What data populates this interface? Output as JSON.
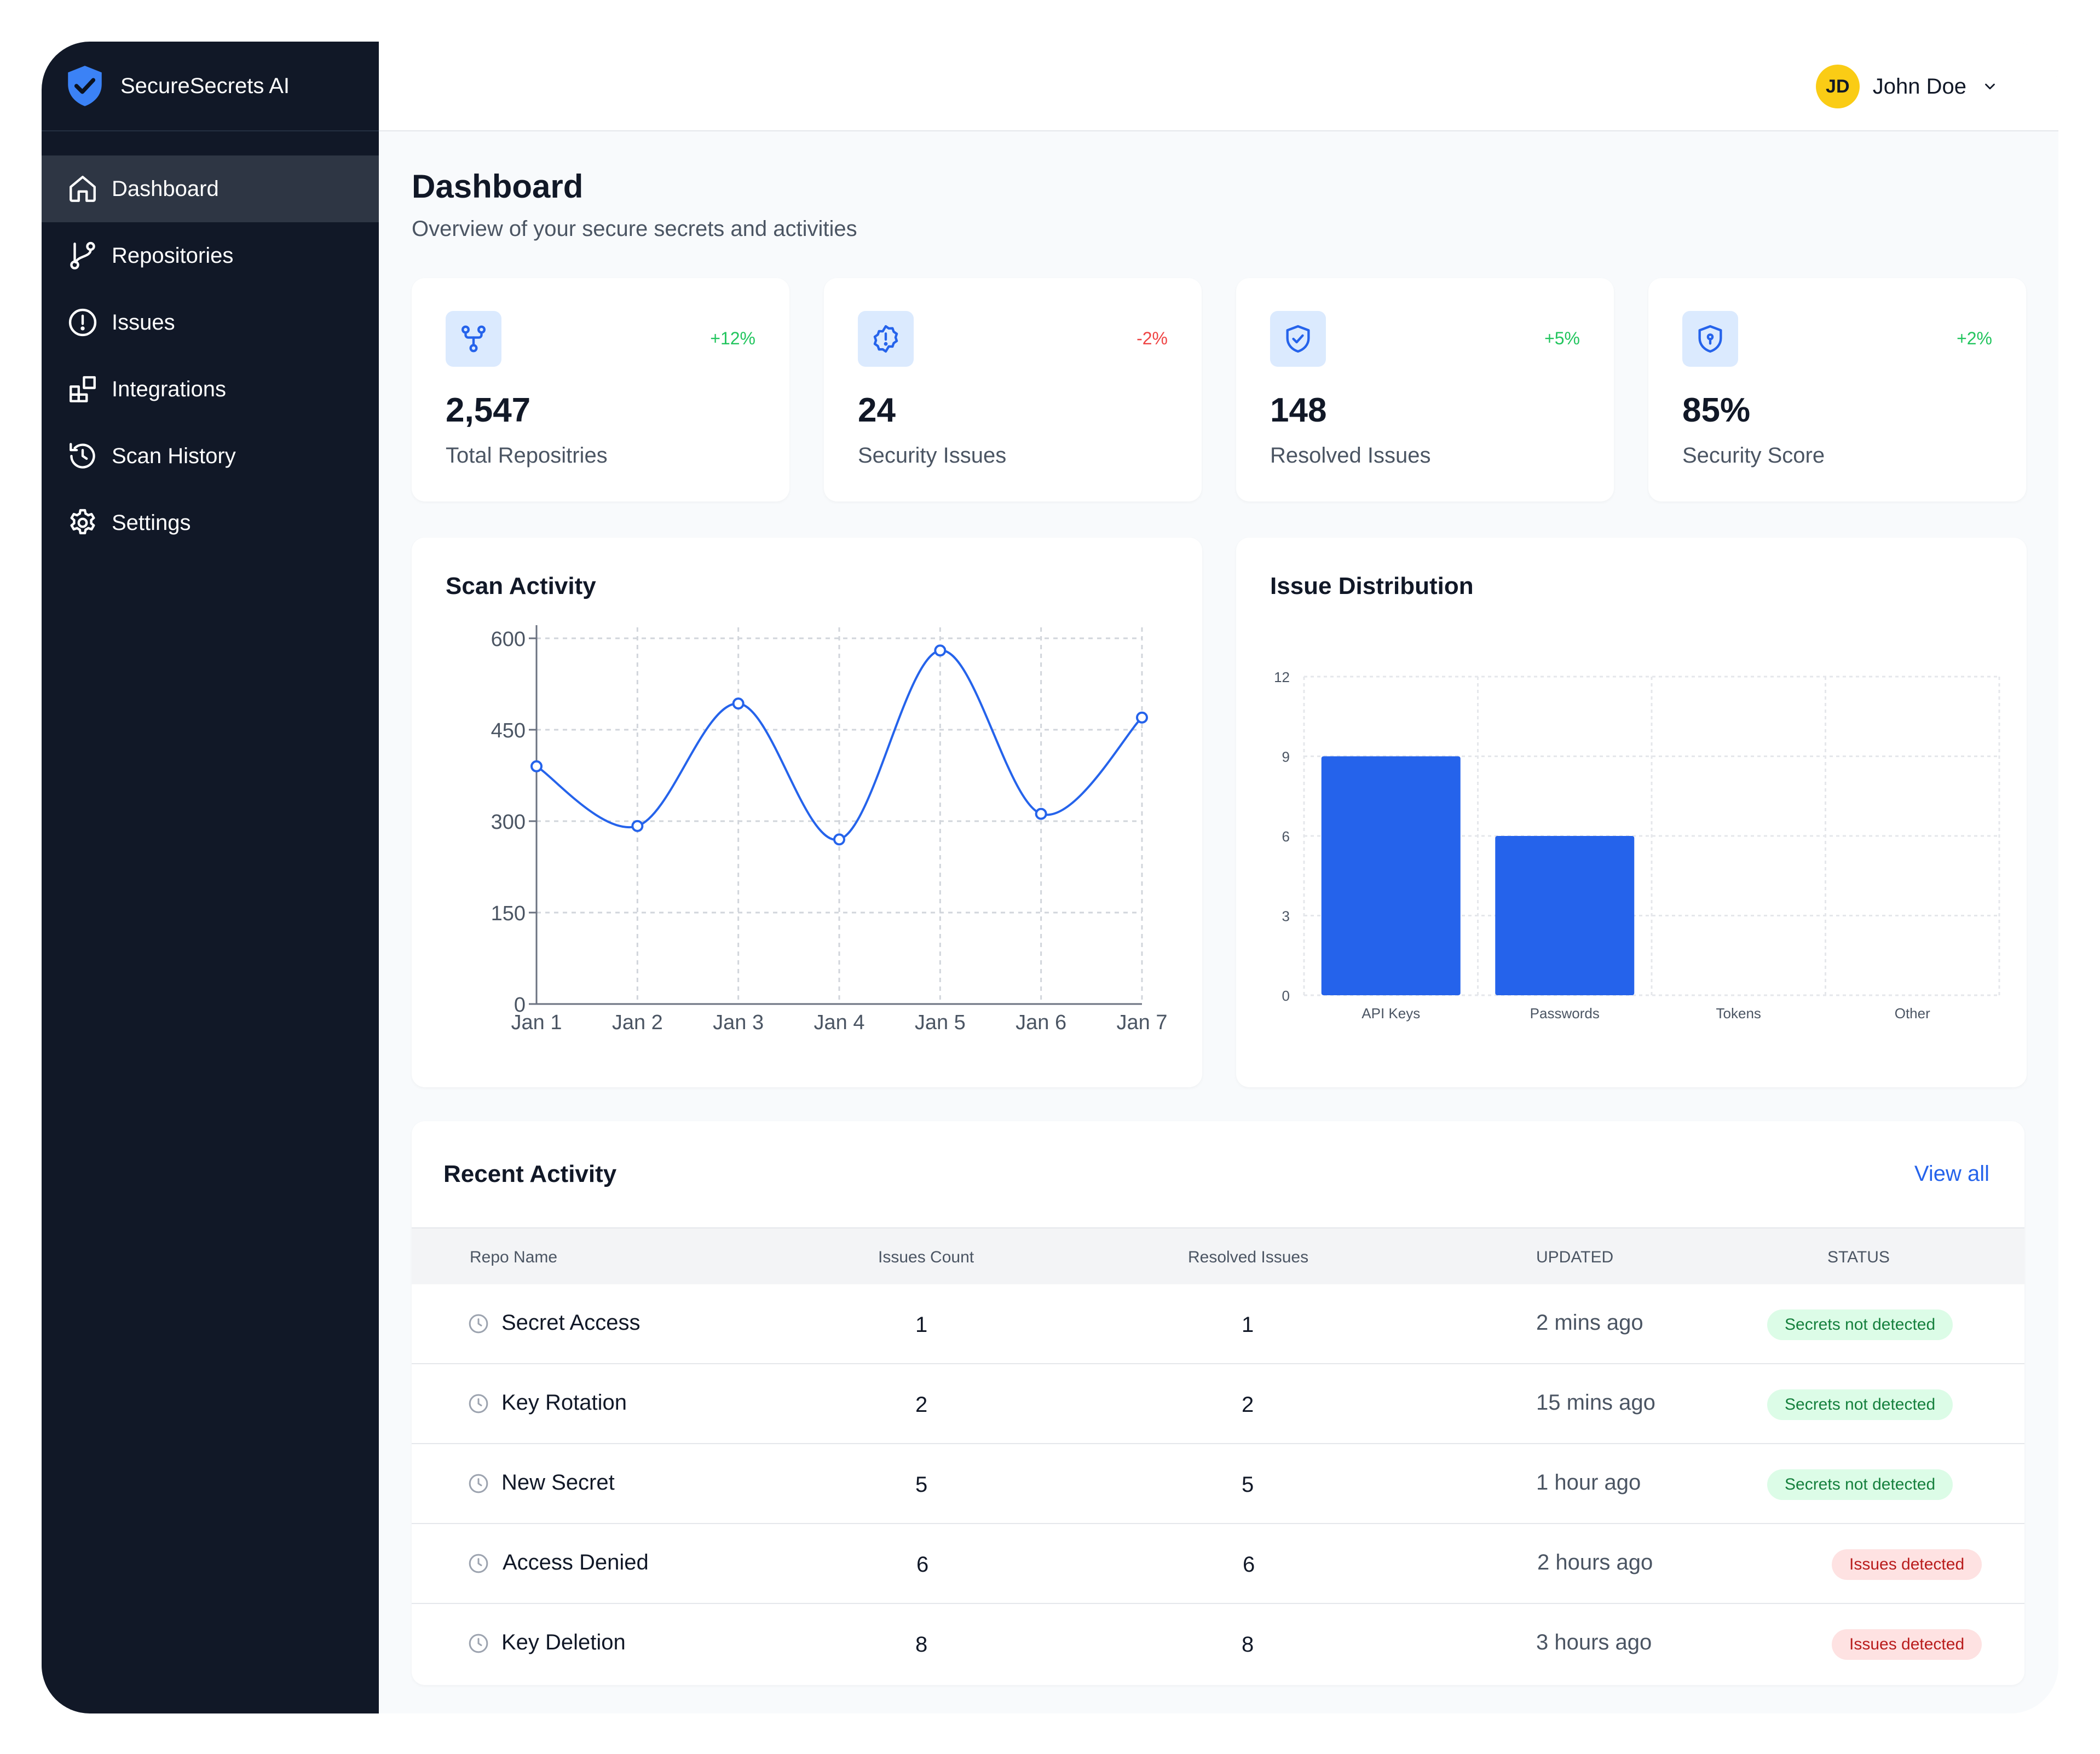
{
  "app": {
    "name": "SecureSecrets AI"
  },
  "colors": {
    "sidebar": "#111827",
    "accent": "#2563eb",
    "positive": "#22c55e",
    "negative": "#ef4444"
  },
  "sidebar": {
    "items": [
      {
        "label": "Dashboard",
        "icon": "home-icon",
        "active": true
      },
      {
        "label": "Repositories",
        "icon": "git-branch-icon"
      },
      {
        "label": "Issues",
        "icon": "alert-circle-icon"
      },
      {
        "label": "Integrations",
        "icon": "blocks-icon"
      },
      {
        "label": "Scan History",
        "icon": "history-icon"
      },
      {
        "label": "Settings",
        "icon": "gear-icon"
      }
    ]
  },
  "user": {
    "initials": "JD",
    "name": "John Doe"
  },
  "page": {
    "title": "Dashboard",
    "subtitle": "Overview of your secure secrets and activities"
  },
  "stats": [
    {
      "value": "2,547",
      "label": "Total Repositries",
      "change": "+12%",
      "trend": "up",
      "icon": "fork-icon"
    },
    {
      "value": "24",
      "label": "Security Issues",
      "change": "-2%",
      "trend": "down",
      "icon": "alert-badge-icon"
    },
    {
      "value": "148",
      "label": "Resolved Issues",
      "change": "+5%",
      "trend": "up",
      "icon": "shield-check-icon"
    },
    {
      "value": "85%",
      "label": "Security Score",
      "change": "+2%",
      "trend": "up",
      "icon": "shield-keyhole-icon"
    }
  ],
  "chart_data": [
    {
      "type": "line",
      "title": "Scan Activity",
      "categories": [
        "Jan 1",
        "Jan 2",
        "Jan 3",
        "Jan 4",
        "Jan 5",
        "Jan 6",
        "Jan 7"
      ],
      "values": [
        390,
        292,
        493,
        270,
        580,
        312,
        470
      ],
      "yticks": [
        "0",
        "150",
        "300",
        "450",
        "600"
      ],
      "ylim": [
        0,
        600
      ],
      "grid": true
    },
    {
      "type": "bar",
      "title": "Issue Distribution",
      "categories": [
        "API Keys",
        "Passwords",
        "Tokens",
        "Other"
      ],
      "values": [
        9,
        6,
        0,
        0
      ],
      "yticks": [
        "0",
        "3",
        "6",
        "9",
        "12"
      ],
      "ylim": [
        0,
        12
      ],
      "grid": true
    }
  ],
  "activity": {
    "title": "Recent Activity",
    "view_all": "View all",
    "columns": [
      "Repo Name",
      "Issues Count",
      "Resolved Issues",
      "UPDATED",
      "STATUS"
    ],
    "rows": [
      {
        "name": "Secret Access",
        "issues": "1",
        "resolved": "1",
        "updated": "2 mins ago",
        "status": "Secrets not detected",
        "ok": true
      },
      {
        "name": "Key Rotation",
        "issues": "2",
        "resolved": "2",
        "updated": "15 mins ago",
        "status": "Secrets not detected",
        "ok": true
      },
      {
        "name": "New Secret",
        "issues": "5",
        "resolved": "5",
        "updated": "1 hour ago",
        "status": "Secrets not detected",
        "ok": true
      },
      {
        "name": "Access Denied",
        "issues": "6",
        "resolved": "6",
        "updated": "2 hours ago",
        "status": "Issues detected",
        "ok": false
      },
      {
        "name": "Key Deletion",
        "issues": "8",
        "resolved": "8",
        "updated": "3 hours ago",
        "status": "Issues detected",
        "ok": false
      }
    ]
  }
}
